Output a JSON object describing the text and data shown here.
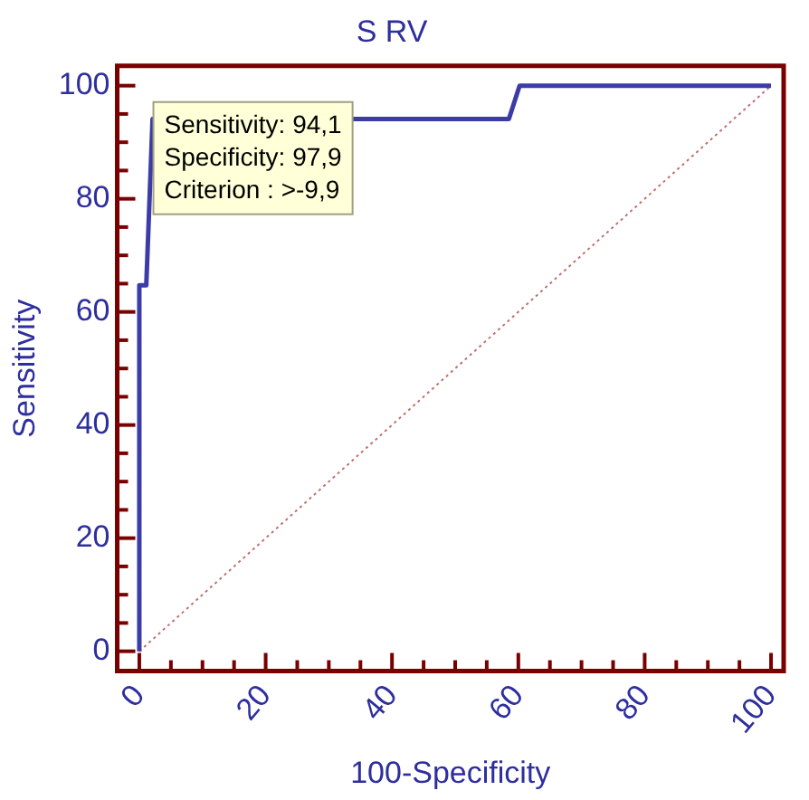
{
  "chart_data": {
    "type": "line",
    "title": "S RV",
    "xlabel": "100-Specificity",
    "ylabel": "Sensitivity",
    "xlim": [
      -3.5,
      102
    ],
    "ylim": [
      -3.5,
      103.5
    ],
    "xticks": [
      0,
      {
        "value": 5,
        "label": null
      },
      {
        "value": 10,
        "label": null
      },
      {
        "value": 15,
        "label": null
      },
      20,
      {
        "value": 25,
        "label": null
      },
      {
        "value": 30,
        "label": null
      },
      {
        "value": 35,
        "label": null
      },
      40,
      {
        "value": 45,
        "label": null
      },
      {
        "value": 50,
        "label": null
      },
      {
        "value": 55,
        "label": null
      },
      60,
      {
        "value": 65,
        "label": null
      },
      {
        "value": 70,
        "label": null
      },
      {
        "value": 75,
        "label": null
      },
      80,
      {
        "value": 85,
        "label": null
      },
      {
        "value": 90,
        "label": null
      },
      {
        "value": 95,
        "label": null
      },
      100
    ],
    "yticks": [
      0,
      {
        "value": 5,
        "label": null
      },
      {
        "value": 10,
        "label": null
      },
      {
        "value": 15,
        "label": null
      },
      20,
      {
        "value": 25,
        "label": null
      },
      {
        "value": 30,
        "label": null
      },
      {
        "value": 35,
        "label": null
      },
      40,
      {
        "value": 45,
        "label": null
      },
      {
        "value": 50,
        "label": null
      },
      {
        "value": 55,
        "label": null
      },
      60,
      {
        "value": 65,
        "label": null
      },
      {
        "value": 70,
        "label": null
      },
      {
        "value": 75,
        "label": null
      },
      80,
      {
        "value": 85,
        "label": null
      },
      {
        "value": 90,
        "label": null
      },
      {
        "value": 95,
        "label": null
      },
      100
    ],
    "grid": false,
    "legend": false,
    "marker": "none",
    "series": [
      {
        "color": "#3c3ca8",
        "x": [
          0,
          0,
          1.1,
          2.1,
          58.5,
          60.2,
          100
        ],
        "values": [
          0,
          64.7,
          64.7,
          94.1,
          94.1,
          100,
          100
        ],
        "line_style": "solid"
      },
      {
        "color": "#c07070",
        "x": [
          0,
          100
        ],
        "values": [
          0,
          100
        ],
        "line_style": "dotted"
      }
    ],
    "annotations": [
      "Sensitivity: 94,1",
      "Specificity: 97,9",
      "Criterion : >-9,9"
    ]
  }
}
